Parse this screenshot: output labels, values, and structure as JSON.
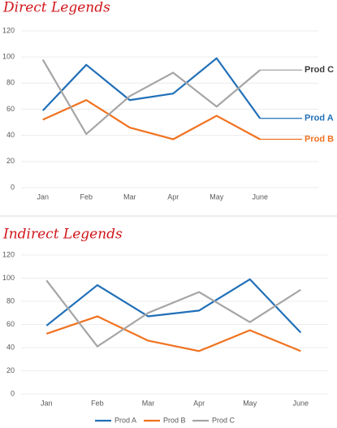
{
  "chart_data": [
    {
      "type": "line",
      "title": "Direct Legends",
      "categories": [
        "Jan",
        "Feb",
        "Mar",
        "Apr",
        "May",
        "June"
      ],
      "series": [
        {
          "name": "Prod A",
          "color": "#2170b8",
          "label_color": "#2170b8",
          "values": [
            59,
            94,
            67,
            72,
            99,
            53
          ]
        },
        {
          "name": "Prod B",
          "color": "#f0721f",
          "label_color": "#f0721f",
          "values": [
            52,
            67,
            46,
            37,
            55,
            37
          ]
        },
        {
          "name": "Prod C",
          "color": "#a5a5a5",
          "label_color": "#3b3b3b",
          "values": [
            98,
            41,
            70,
            88,
            62,
            90
          ]
        }
      ],
      "ylim": [
        0,
        120
      ],
      "yticks": [
        0,
        20,
        40,
        60,
        80,
        100,
        120
      ],
      "grid": true,
      "legend": "line-end"
    },
    {
      "type": "line",
      "title": "Indirect Legends",
      "categories": [
        "Jan",
        "Feb",
        "Mar",
        "Apr",
        "May",
        "June"
      ],
      "series": [
        {
          "name": "Prod A",
          "color": "#2170b8",
          "values": [
            59,
            94,
            67,
            72,
            99,
            53
          ]
        },
        {
          "name": "Prod B",
          "color": "#f0721f",
          "values": [
            52,
            67,
            46,
            37,
            55,
            37
          ]
        },
        {
          "name": "Prod C",
          "color": "#a5a5a5",
          "values": [
            98,
            41,
            70,
            88,
            62,
            90
          ]
        }
      ],
      "ylim": [
        0,
        120
      ],
      "yticks": [
        0,
        20,
        40,
        60,
        80,
        100,
        120
      ],
      "grid": true,
      "legend": "bottom"
    }
  ]
}
